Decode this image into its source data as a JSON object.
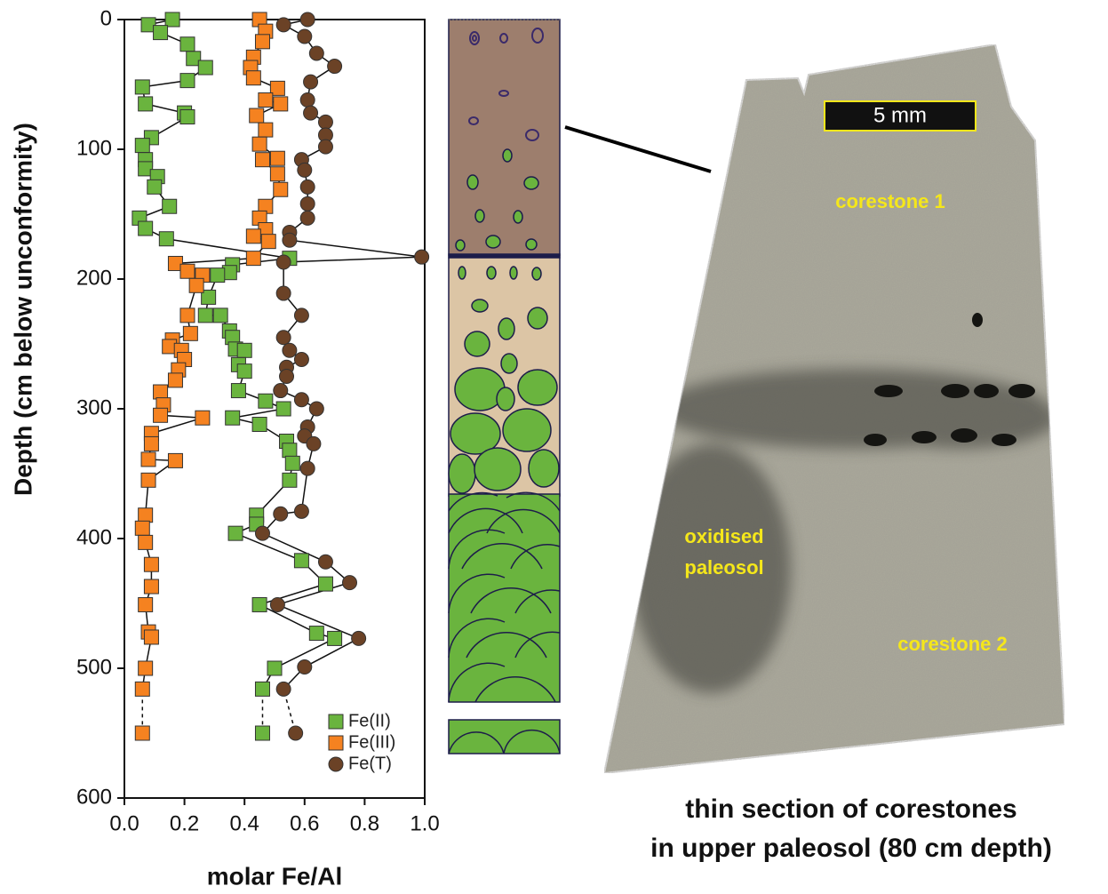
{
  "chart_data": {
    "type": "scatter",
    "xlabel": "molar Fe/Al",
    "ylabel": "Depth (cm below unconformity)",
    "xlim": [
      0,
      1
    ],
    "ylim": [
      600,
      0
    ],
    "xticks": [
      {
        "value": 0,
        "label": "0.0"
      },
      0.2,
      0.4,
      0.6,
      0.8,
      {
        "value": 1,
        "label": "1.0"
      }
    ],
    "yticks": [
      0,
      100,
      200,
      300,
      400,
      500,
      600
    ],
    "legend": "lower right",
    "last_segment_dashed": true,
    "series": [
      {
        "name": "Fe(II)",
        "color": "#6ab43e",
        "marker": "square",
        "x": [
          0.16,
          0.08,
          0.12,
          0.21,
          0.23,
          0.27,
          0.21,
          0.06,
          0.07,
          0.2,
          0.21,
          0.09,
          0.06,
          0.07,
          0.07,
          0.11,
          0.1,
          0.15,
          0.05,
          0.07,
          0.14,
          0.55,
          0.36,
          0.35,
          0.31,
          0.28,
          0.27,
          0.32,
          0.35,
          0.36,
          0.37,
          0.4,
          0.38,
          0.4,
          0.38,
          0.47,
          0.53,
          0.36,
          0.45,
          0.54,
          0.55,
          0.56,
          0.55,
          0.44,
          0.44,
          0.37,
          0.59,
          0.67,
          0.45,
          0.64,
          0.7,
          0.5,
          0.46,
          0.46
        ],
        "y": [
          0,
          4,
          10,
          19,
          30,
          37,
          47,
          52,
          65,
          72,
          75,
          91,
          97,
          108,
          115,
          121,
          129,
          144,
          153,
          161,
          169,
          184,
          189,
          195,
          197,
          214,
          228,
          228,
          240,
          245,
          254,
          255,
          266,
          271,
          286,
          294,
          300,
          307,
          312,
          325,
          332,
          342,
          355,
          382,
          389,
          396,
          417,
          435,
          451,
          473,
          477,
          500,
          516,
          550
        ]
      },
      {
        "name": "Fe(III)",
        "color": "#f58220",
        "marker": "square",
        "x": [
          0.45,
          0.47,
          0.46,
          0.43,
          0.42,
          0.43,
          0.51,
          0.47,
          0.52,
          0.44,
          0.47,
          0.45,
          0.51,
          0.46,
          0.51,
          0.52,
          0.47,
          0.45,
          0.47,
          0.43,
          0.48,
          0.43,
          0.17,
          0.21,
          0.26,
          0.24,
          0.21,
          0.22,
          0.16,
          0.15,
          0.19,
          0.2,
          0.18,
          0.17,
          0.12,
          0.13,
          0.12,
          0.26,
          0.09,
          0.09,
          0.08,
          0.17,
          0.08,
          0.07,
          0.06,
          0.07,
          0.09,
          0.09,
          0.07,
          0.08,
          0.09,
          0.07,
          0.06,
          0.06
        ],
        "y": [
          0,
          9,
          17,
          29,
          37,
          45,
          53,
          62,
          65,
          74,
          85,
          96,
          107,
          108,
          119,
          131,
          144,
          153,
          162,
          167,
          171,
          184,
          188,
          194,
          197,
          205,
          228,
          242,
          247,
          252,
          255,
          262,
          270,
          278,
          287,
          297,
          305,
          307,
          319,
          327,
          339,
          340,
          355,
          382,
          392,
          403,
          420,
          437,
          451,
          472,
          476,
          500,
          516,
          550
        ]
      },
      {
        "name": "Fe(T)",
        "color": "#6b4226",
        "marker": "circle",
        "x": [
          0.61,
          0.53,
          0.6,
          0.64,
          0.7,
          0.62,
          0.61,
          0.62,
          0.67,
          0.67,
          0.67,
          0.59,
          0.6,
          0.61,
          0.61,
          0.61,
          0.55,
          0.55,
          0.99,
          0.53,
          0.53,
          0.59,
          0.53,
          0.55,
          0.59,
          0.54,
          0.54,
          0.52,
          0.59,
          0.64,
          0.61,
          0.6,
          0.63,
          0.61,
          0.59,
          0.52,
          0.46,
          0.67,
          0.75,
          0.51,
          0.78,
          0.6,
          0.53,
          0.57
        ],
        "y": [
          0,
          4,
          13,
          26,
          36,
          48,
          62,
          72,
          79,
          89,
          98,
          108,
          116,
          129,
          142,
          153,
          164,
          170,
          183,
          187,
          211,
          228,
          245,
          255,
          262,
          268,
          275,
          286,
          293,
          300,
          314,
          321,
          327,
          346,
          379,
          381,
          396,
          418,
          434,
          451,
          477,
          499,
          516,
          550
        ]
      }
    ],
    "photo_labels": {
      "scale": "5 mm",
      "corestone_1": "corestone 1",
      "oxidised": [
        "oxidised",
        "paleosol"
      ],
      "corestone_2": "corestone 2"
    },
    "caption": [
      "thin section of corestones",
      "in upper paleosol (80 cm depth)"
    ]
  }
}
